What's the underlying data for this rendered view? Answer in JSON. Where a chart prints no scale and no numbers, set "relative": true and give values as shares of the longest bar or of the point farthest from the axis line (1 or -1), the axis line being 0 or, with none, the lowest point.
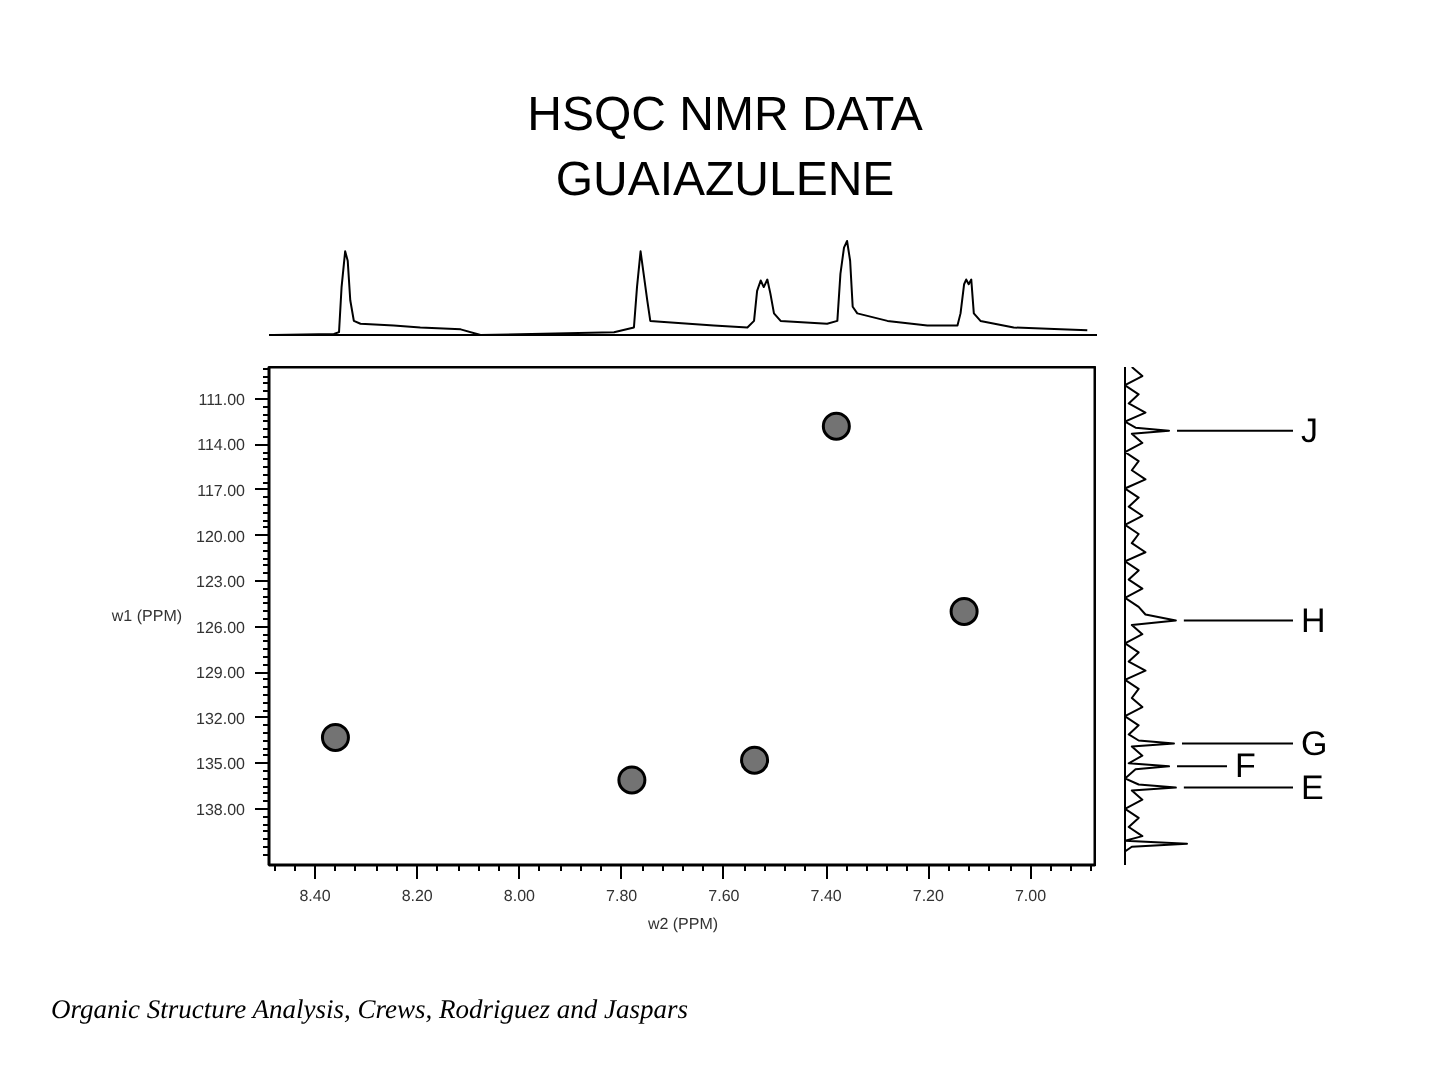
{
  "chart_data": [
    {
      "type": "line",
      "title": "HSQC NMR DATA\nGUAIAZULENE",
      "relative": true,
      "xlim": [
        8.49,
        6.87
      ],
      "tick_labels": false,
      "color": "#000000",
      "x": [
        8.481,
        8.363,
        8.353,
        8.348,
        8.341,
        8.336,
        8.331,
        8.324,
        8.311,
        8.246,
        8.194,
        8.115,
        8.076,
        7.815,
        7.776,
        7.77,
        7.763,
        7.757,
        7.75,
        7.744,
        7.724,
        7.62,
        7.554,
        7.541,
        7.535,
        7.528,
        7.522,
        7.515,
        7.509,
        7.502,
        7.489,
        7.398,
        7.378,
        7.372,
        7.365,
        7.359,
        7.353,
        7.348,
        7.339,
        7.28,
        7.202,
        7.143,
        7.137,
        7.13,
        7.126,
        7.121,
        7.116,
        7.111,
        7.098,
        7.033,
        6.941,
        6.889
      ],
      "values": [
        0,
        0.01,
        0.03,
        0.51,
        0.89,
        0.79,
        0.37,
        0.15,
        0.12,
        0.1,
        0.08,
        0.06,
        0,
        0.03,
        0.08,
        0.51,
        0.89,
        0.65,
        0.37,
        0.15,
        0.14,
        0.1,
        0.08,
        0.15,
        0.47,
        0.58,
        0.51,
        0.59,
        0.44,
        0.23,
        0.15,
        0.12,
        0.15,
        0.65,
        0.93,
        1,
        0.79,
        0.3,
        0.23,
        0.15,
        0.1,
        0.1,
        0.23,
        0.54,
        0.59,
        0.54,
        0.59,
        0.23,
        0.15,
        0.08,
        0.06,
        0.05
      ]
    },
    {
      "type": "scatter",
      "xlabel": "w2 (PPM)",
      "ylabel": "w1 (PPM)",
      "xlim": [
        8.49,
        6.87
      ],
      "xticks": [
        {
          "value": 8.4,
          "label": "8.40"
        },
        {
          "value": 8.2,
          "label": "8.20"
        },
        {
          "value": 8.0,
          "label": "8.00"
        },
        {
          "value": 7.8,
          "label": "7.80"
        },
        {
          "value": 7.6,
          "label": "7.60"
        },
        {
          "value": 7.4,
          "label": "7.40"
        },
        {
          "value": 7.2,
          "label": "7.20"
        },
        {
          "value": 7.0,
          "label": "7.00"
        }
      ],
      "ylim": [
        141.7,
        108.9
      ],
      "yticks": [
        {
          "value": 111,
          "label": "111.00"
        },
        {
          "value": 114,
          "label": "114.00"
        },
        {
          "value": 117,
          "label": "117.00"
        },
        {
          "value": 120,
          "label": "120.00"
        },
        {
          "value": 123,
          "label": "123.00"
        },
        {
          "value": 126,
          "label": "126.00"
        },
        {
          "value": 129,
          "label": "129.00"
        },
        {
          "value": 132,
          "label": "132.00"
        },
        {
          "value": 135,
          "label": "135.00"
        },
        {
          "value": 138,
          "label": "138.00"
        }
      ],
      "x": [
        8.36,
        7.78,
        7.54,
        7.38,
        7.13
      ],
      "values": [
        133.3,
        136.1,
        134.8,
        112.8,
        125.0
      ],
      "color": "#000000",
      "marker": "circle",
      "annotations": [
        "Organic Structure Analysis, Crews, Rodriguez and Jaspars"
      ]
    },
    {
      "type": "line",
      "orientation": "horizontal",
      "relative": true,
      "ylim": [
        141.7,
        108.9
      ],
      "tick_labels": false,
      "color": "#000000",
      "x": [
        108.9,
        109.5,
        110.1,
        110.7,
        111.3,
        111.9,
        112.5,
        112.9,
        113.1,
        113.3,
        113.9,
        114.5,
        115.1,
        115.7,
        116.3,
        116.9,
        117.5,
        118.1,
        118.7,
        119.3,
        119.9,
        120.5,
        121.1,
        121.7,
        122.3,
        122.9,
        123.5,
        124.1,
        124.7,
        125.2,
        125.6,
        125.9,
        126.5,
        127.1,
        127.7,
        128.3,
        128.9,
        129.5,
        130.1,
        130.7,
        131.3,
        131.9,
        132.5,
        133.1,
        133.5,
        133.7,
        133.9,
        134.5,
        135.0,
        135.2,
        135.4,
        136.0,
        136.4,
        136.6,
        136.8,
        137.4,
        138.0,
        138.6,
        139.2,
        139.8,
        140.1,
        140.3,
        140.5,
        140.8
      ],
      "values": [
        0.11,
        0.28,
        0,
        0.22,
        0.06,
        0.33,
        0,
        0.17,
        0.71,
        0.11,
        0.28,
        0,
        0.22,
        0.11,
        0.33,
        0,
        0.22,
        0.06,
        0.28,
        0,
        0.22,
        0.11,
        0.33,
        0,
        0.22,
        0.06,
        0.28,
        0,
        0.22,
        0.33,
        0.82,
        0.11,
        0.28,
        0,
        0.22,
        0.06,
        0.33,
        0,
        0.22,
        0.11,
        0.28,
        0,
        0.22,
        0.06,
        0.22,
        0.79,
        0.11,
        0.28,
        0.06,
        0.71,
        0.17,
        0,
        0.22,
        0.82,
        0.11,
        0.28,
        0,
        0.22,
        0.06,
        0.28,
        0,
        1,
        0.11,
        0
      ],
      "annotations": [
        "J",
        "H",
        "G",
        "F",
        "E"
      ]
    }
  ]
}
